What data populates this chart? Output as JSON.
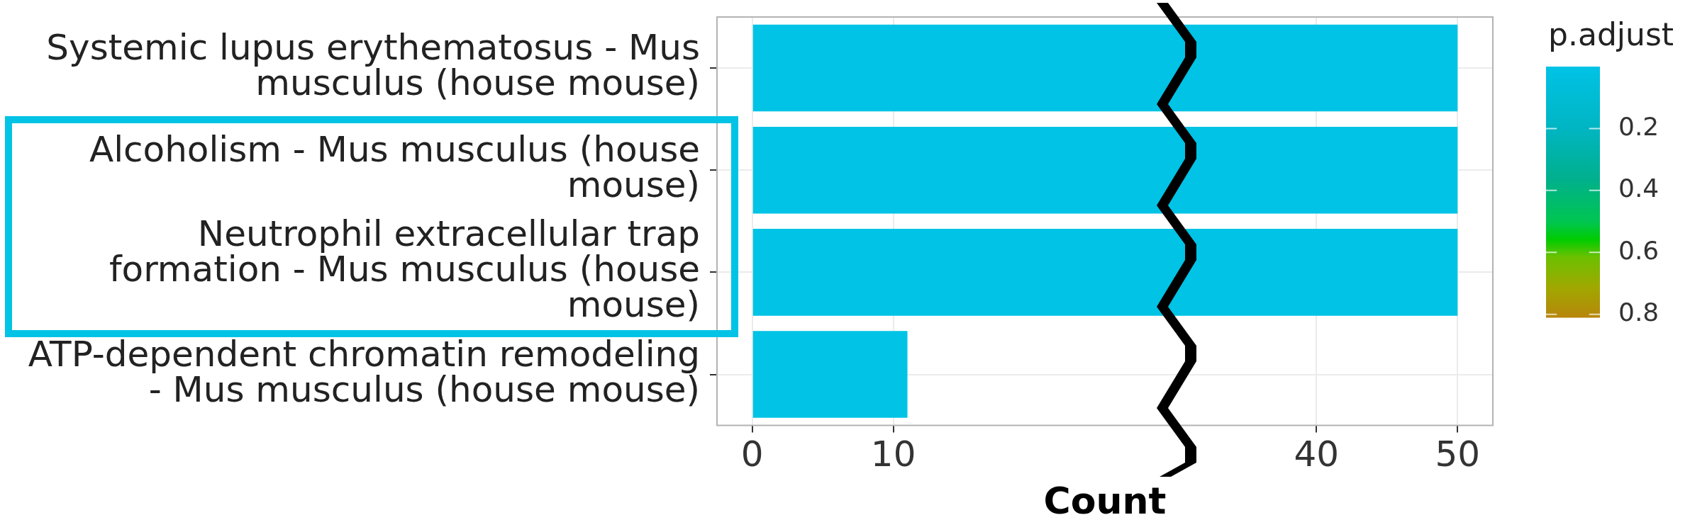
{
  "chart_data": {
    "type": "bar",
    "orientation": "horizontal",
    "categories": [
      "Systemic lupus erythematosus - Mus musculus (house mouse)",
      "Alcoholism - Mus musculus (house mouse)",
      "Neutrophil extracellular trap formation - Mus musculus (house mouse)",
      "ATP-dependent chromatin remodeling - Mus musculus (house mouse)"
    ],
    "values": [
      50,
      50,
      50,
      11
    ],
    "color": "#00c3e5",
    "xlabel": "Count",
    "xlim": [
      -2.5,
      52.5
    ],
    "xticks": [
      0,
      10,
      40,
      50
    ],
    "clabel": "p.adjust",
    "clim": [
      0,
      0.81
    ],
    "cticks": [
      0.2,
      0.4,
      0.6,
      0.8
    ],
    "grid": true
  }
}
